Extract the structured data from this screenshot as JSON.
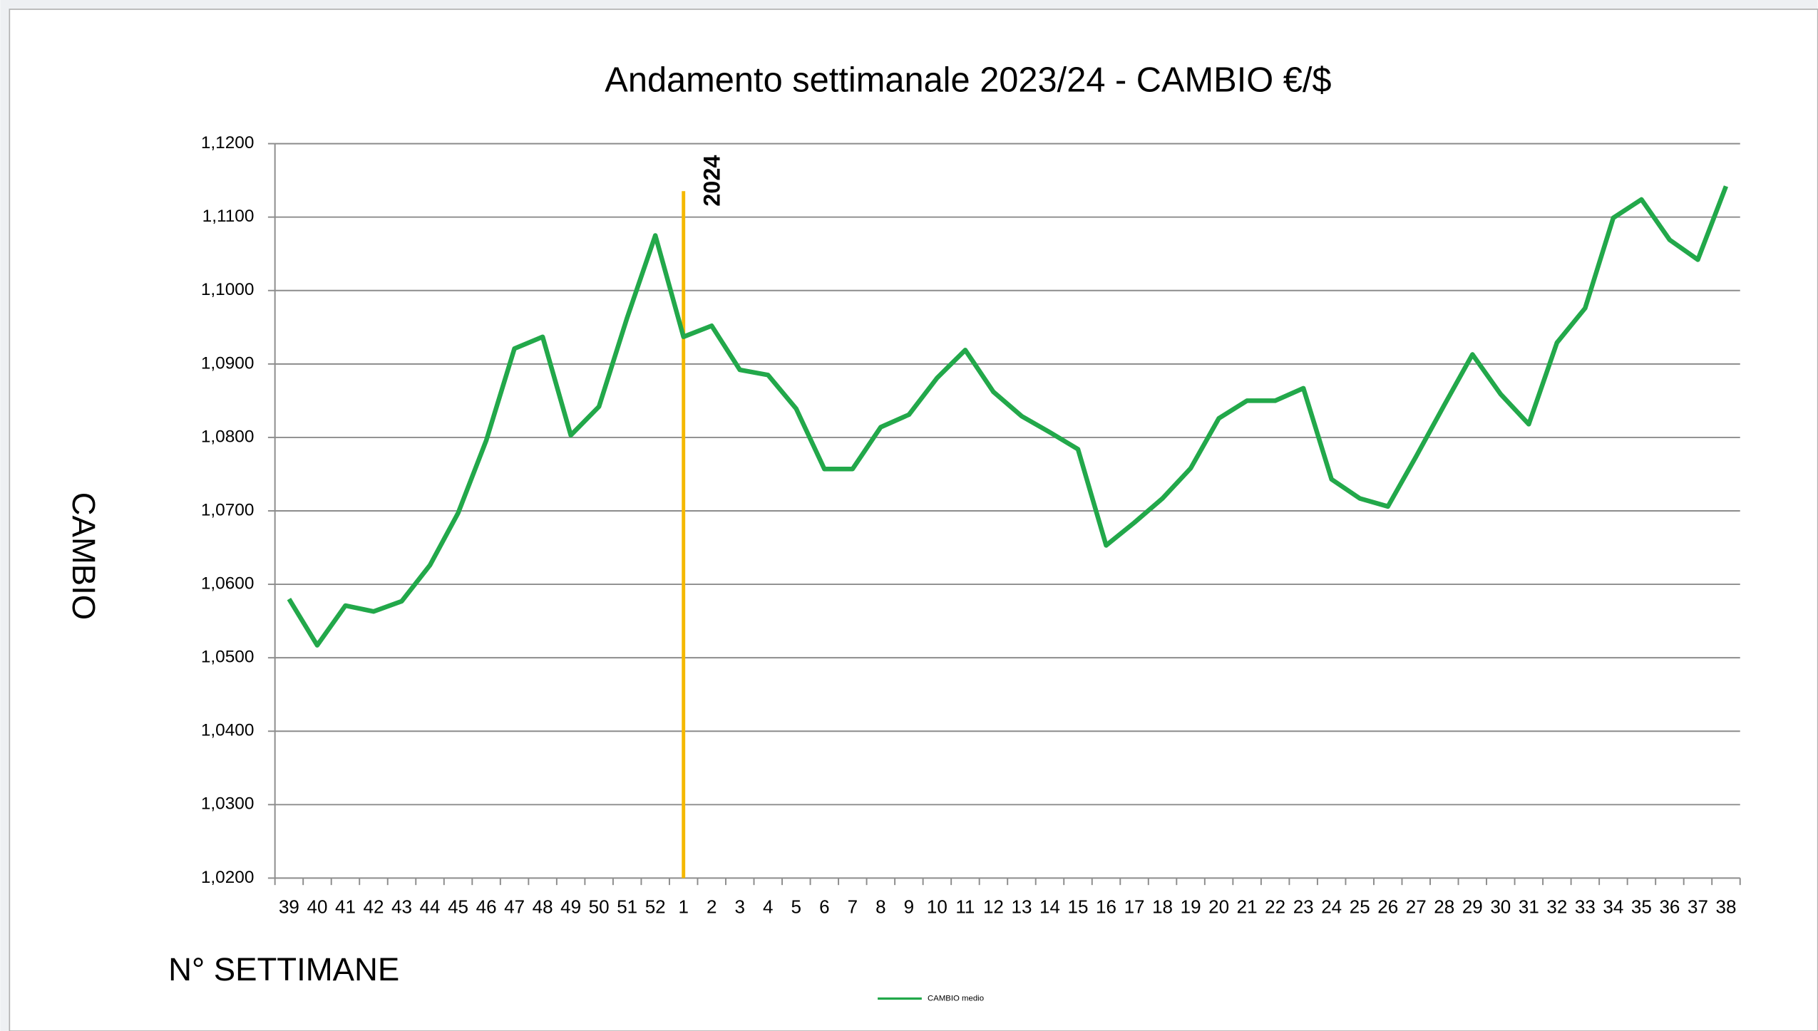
{
  "chart_data": {
    "type": "line",
    "title": "Andamento settimanale 2023/24 - CAMBIO €/$",
    "x_label": "N° SETTIMANE",
    "y_label": "CAMBIO",
    "categories": [
      "39",
      "40",
      "41",
      "42",
      "43",
      "44",
      "45",
      "46",
      "47",
      "48",
      "49",
      "50",
      "51",
      "52",
      "1",
      "2",
      "3",
      "4",
      "5",
      "6",
      "7",
      "8",
      "9",
      "10",
      "11",
      "12",
      "13",
      "14",
      "15",
      "16",
      "17",
      "18",
      "19",
      "20",
      "21",
      "22",
      "23",
      "24",
      "25",
      "26",
      "27",
      "28",
      "29",
      "30",
      "31",
      "32",
      "33",
      "34",
      "35",
      "36",
      "37",
      "38"
    ],
    "series": [
      {
        "name": "CAMBIO medio",
        "color": "#22a84a",
        "values": [
          1.058,
          1.0517,
          1.0571,
          1.0563,
          1.0577,
          1.0626,
          1.0697,
          1.0796,
          1.0921,
          1.0937,
          1.0803,
          1.0842,
          1.0963,
          1.1075,
          1.0937,
          1.0952,
          1.0892,
          1.0885,
          1.0839,
          1.0757,
          1.0757,
          1.0814,
          1.0831,
          1.0881,
          1.0919,
          1.0862,
          1.0829,
          1.0807,
          1.0784,
          1.0653,
          1.0684,
          1.0717,
          1.0758,
          1.0826,
          1.085,
          1.085,
          1.0867,
          1.0743,
          1.0717,
          1.0706,
          1.0774,
          1.0844,
          1.0913,
          1.0859,
          1.0818,
          1.0929,
          1.0976,
          1.1099,
          1.1124,
          1.1069,
          1.1042,
          1.1142
        ]
      }
    ],
    "ylim": [
      1.02,
      1.12
    ],
    "yticks": [
      {
        "value": 1.02,
        "label": "1,0200"
      },
      {
        "value": 1.03,
        "label": "1,0300"
      },
      {
        "value": 1.04,
        "label": "1,0400"
      },
      {
        "value": 1.05,
        "label": "1,0500"
      },
      {
        "value": 1.06,
        "label": "1,0600"
      },
      {
        "value": 1.07,
        "label": "1,0700"
      },
      {
        "value": 1.08,
        "label": "1,0800"
      },
      {
        "value": 1.09,
        "label": "1,0900"
      },
      {
        "value": 1.1,
        "label": "1,1000"
      },
      {
        "value": 1.11,
        "label": "1,1100"
      },
      {
        "value": 1.12,
        "label": "1,1200"
      }
    ],
    "grid": true,
    "annotation": {
      "label": "2024",
      "at": "1",
      "color": "#f5b800"
    },
    "legend": "bottom"
  }
}
